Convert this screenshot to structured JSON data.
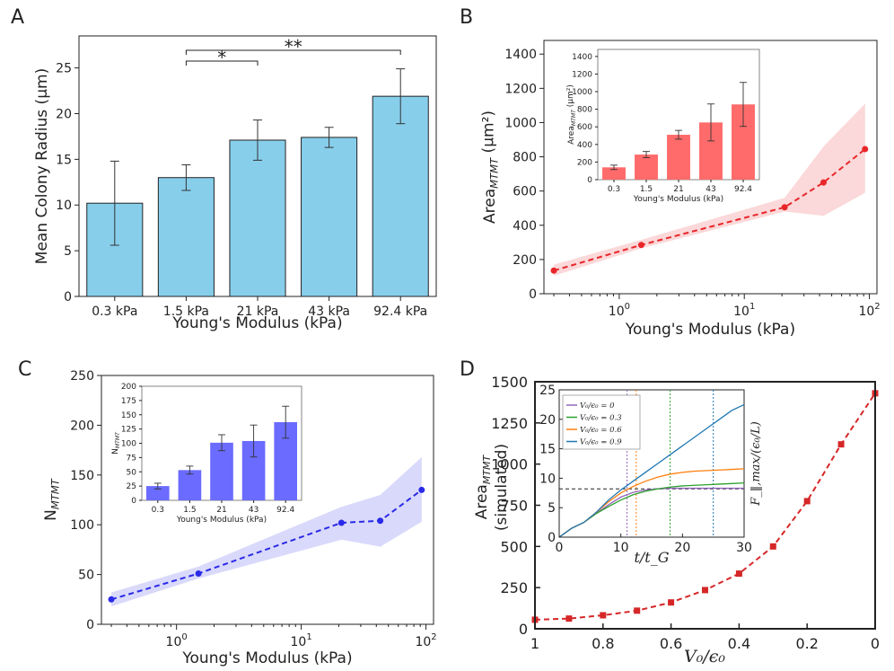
{
  "panels": {
    "A": {
      "letter": "A"
    },
    "B": {
      "letter": "B"
    },
    "C": {
      "letter": "C"
    },
    "D": {
      "letter": "D"
    }
  },
  "chart_data": [
    {
      "id": "A",
      "type": "bar",
      "title": "",
      "categories": [
        "0.3 kPa",
        "1.5 kPa",
        "21 kPa",
        "43 kPa",
        "92.4 kPa"
      ],
      "values": [
        10.2,
        13.0,
        17.1,
        17.4,
        21.9
      ],
      "errors": [
        4.6,
        1.4,
        2.2,
        1.1,
        3.0
      ],
      "xlabel": "Young's Modulus (kPa)",
      "ylabel": "Mean Colony Radius (μm)",
      "ylim": [
        0,
        28.5
      ],
      "yticks": [
        0,
        5,
        10,
        15,
        20,
        25
      ],
      "color": "#87ceeb",
      "significance": [
        {
          "from": 1,
          "to": 2,
          "label": "*"
        },
        {
          "from": 1,
          "to": 4,
          "label": "**"
        }
      ]
    },
    {
      "id": "B",
      "type": "line",
      "x": [
        0.3,
        1.5,
        21,
        43,
        92.4
      ],
      "y": [
        135,
        285,
        505,
        650,
        845
      ],
      "band_low": [
        105,
        265,
        480,
        455,
        590
      ],
      "band_high": [
        170,
        315,
        560,
        860,
        1110
      ],
      "xscale": "log",
      "xlim": [
        0.25,
        115
      ],
      "ylim": [
        0,
        1480
      ],
      "yticks": [
        0,
        200,
        400,
        600,
        800,
        1000,
        1200,
        1400
      ],
      "xticks": [
        "10^0",
        "10^1",
        "10^2"
      ],
      "xlabel": "Young's Modulus (kPa)",
      "ylabel": "Area_MTMT (μm²)",
      "color": "#e8262a",
      "inset": {
        "type": "bar",
        "categories": [
          "0.3",
          "1.5",
          "21",
          "43",
          "92.4"
        ],
        "values": [
          140,
          285,
          510,
          650,
          855
        ],
        "errors": [
          25,
          35,
          50,
          210,
          250
        ],
        "ylim": [
          0,
          1480
        ],
        "yticks": [
          0,
          200,
          400,
          600,
          800,
          1000,
          1200,
          1400
        ],
        "xlabel": "Young's Modulus (kPa)",
        "ylabel": "Area_MTMT (μm²)",
        "color": "#ff6b6b"
      }
    },
    {
      "id": "C",
      "type": "line",
      "x": [
        0.3,
        1.5,
        21,
        43,
        92.4
      ],
      "y": [
        25,
        51,
        102,
        104,
        135
      ],
      "band_low": [
        18,
        46,
        85,
        78,
        103
      ],
      "band_high": [
        32,
        58,
        118,
        130,
        168
      ],
      "xscale": "log",
      "xlim": [
        0.25,
        115
      ],
      "ylim": [
        0,
        250
      ],
      "yticks": [
        0,
        50,
        100,
        150,
        200,
        250
      ],
      "xticks": [
        "10^0",
        "10^1",
        "10^2"
      ],
      "xlabel": "Young's Modulus (kPa)",
      "ylabel": "N_MTMT",
      "color": "#2a2ae8",
      "inset": {
        "type": "bar",
        "categories": [
          "0.3",
          "1.5",
          "21",
          "43",
          "92.4"
        ],
        "values": [
          25,
          53,
          101,
          104,
          137
        ],
        "errors": [
          5,
          7,
          14,
          28,
          28
        ],
        "ylim": [
          0,
          200
        ],
        "yticks": [
          0,
          25,
          50,
          75,
          100,
          125,
          150,
          175,
          200
        ],
        "xlabel": "Young's Modulus (kPa)",
        "ylabel": "N_MTMT",
        "color": "#6b6bff"
      }
    },
    {
      "id": "D",
      "type": "line",
      "x": [
        1.0,
        0.9,
        0.8,
        0.7,
        0.6,
        0.5,
        0.4,
        0.3,
        0.2,
        0.1,
        0.0
      ],
      "y": [
        55,
        62,
        82,
        110,
        160,
        235,
        335,
        500,
        775,
        1120,
        1430
      ],
      "xlim": [
        1.0,
        0.0
      ],
      "ylim": [
        0,
        1500
      ],
      "yticks": [
        0,
        250,
        500,
        750,
        1000,
        1250,
        1500
      ],
      "xticks": [
        "1",
        "0.8",
        "0.6",
        "0.4",
        "0.2",
        "0"
      ],
      "xlabel": "V₀/ϵ₀",
      "ylabel": "Area_MTMT (simulated)",
      "color": "#d62728",
      "inset": {
        "type": "line",
        "xlim": [
          0,
          30
        ],
        "ylim": [
          0,
          25
        ],
        "xticks": [
          0,
          10,
          20,
          30
        ],
        "yticks": [
          0,
          5,
          10,
          15,
          20,
          25
        ],
        "xlabel": "t/t_G",
        "ylabel": "F_‖,max/(ϵ₀/L)",
        "hline": 8.2,
        "legend": [
          "V₀/ϵ₀ = 0",
          "V₀/ϵ₀ = 0.3",
          "V₀/ϵ₀ = 0.6",
          "V₀/ϵ₀ = 0.9"
        ],
        "series": [
          {
            "name": "V₀/ϵ₀ = 0",
            "color": "#9467bd",
            "vline": 11,
            "x": [
              0,
              2,
              4,
              6,
              8,
              10,
              12,
              14,
              16,
              18,
              20,
              22,
              24,
              26,
              28,
              30
            ],
            "y": [
              0,
              1.5,
              2.5,
              4,
              5.5,
              6.8,
              7.6,
              8,
              8.2,
              8.3,
              8.3,
              8.3,
              8.3,
              8.3,
              8.3,
              8.3
            ]
          },
          {
            "name": "V₀/ϵ₀ = 0.3",
            "color": "#2ca02c",
            "vline": 18,
            "x": [
              0,
              2,
              4,
              6,
              8,
              10,
              12,
              14,
              16,
              18,
              20,
              22,
              24,
              26,
              28,
              30
            ],
            "y": [
              0,
              1.5,
              2.5,
              4,
              5.2,
              6.3,
              7.2,
              7.8,
              8.2,
              8.5,
              8.7,
              8.8,
              8.9,
              9.0,
              9.1,
              9.2
            ]
          },
          {
            "name": "V₀/ϵ₀ = 0.6",
            "color": "#ff7f0e",
            "vline": 12.5,
            "x": [
              0,
              2,
              4,
              6,
              8,
              10,
              12,
              14,
              16,
              18,
              20,
              22,
              24,
              26,
              28,
              30
            ],
            "y": [
              0,
              1.5,
              2.5,
              4.2,
              6,
              7.5,
              8.6,
              9.5,
              10.2,
              10.7,
              11,
              11.2,
              11.3,
              11.4,
              11.5,
              11.6
            ]
          },
          {
            "name": "V₀/ϵ₀ = 0.9",
            "color": "#1f77b4",
            "vline": 25,
            "x": [
              0,
              2,
              4,
              6,
              8,
              10,
              12,
              14,
              16,
              18,
              20,
              22,
              24,
              26,
              28,
              30
            ],
            "y": [
              0,
              1.5,
              2.5,
              4.2,
              6.3,
              8,
              9.5,
              11,
              12.5,
              14,
              15.5,
              17,
              18.5,
              20,
              21.5,
              22.5
            ]
          }
        ]
      }
    }
  ]
}
